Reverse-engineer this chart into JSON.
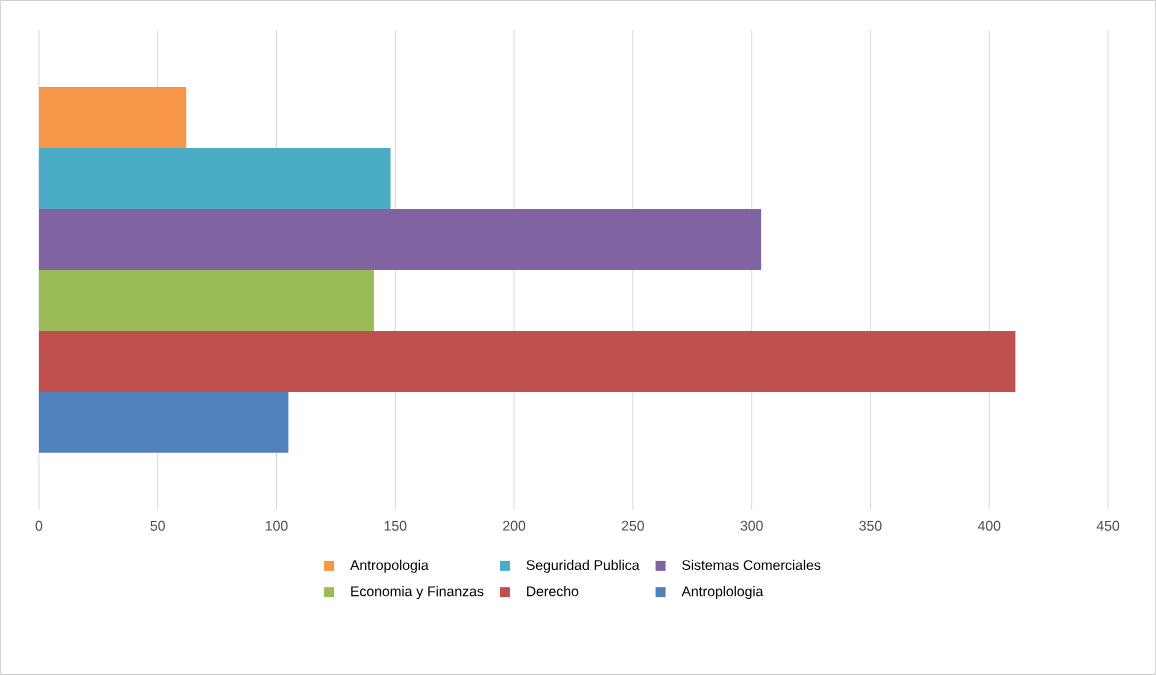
{
  "chart_data": {
    "type": "bar",
    "orientation": "horizontal",
    "categories": [
      null
    ],
    "series": [
      {
        "name": "Antropologia",
        "color": "#f79646",
        "values": [
          62
        ]
      },
      {
        "name": "Seguridad Publica",
        "color": "#4bacc6",
        "values": [
          148
        ]
      },
      {
        "name": "Sistemas Comerciales",
        "color": "#8064a2",
        "values": [
          304
        ]
      },
      {
        "name": "Economia y Finanzas",
        "color": "#9bbb59",
        "values": [
          141
        ]
      },
      {
        "name": "Derecho",
        "color": "#c0504d",
        "values": [
          411
        ]
      },
      {
        "name": "Antroplologia",
        "color": "#4f81bd",
        "values": [
          105
        ]
      }
    ],
    "xlim": [
      0,
      450
    ],
    "xticks": [
      0,
      50,
      100,
      150,
      200,
      250,
      300,
      350,
      400,
      450
    ],
    "grid": "x",
    "legend": "bottom"
  }
}
